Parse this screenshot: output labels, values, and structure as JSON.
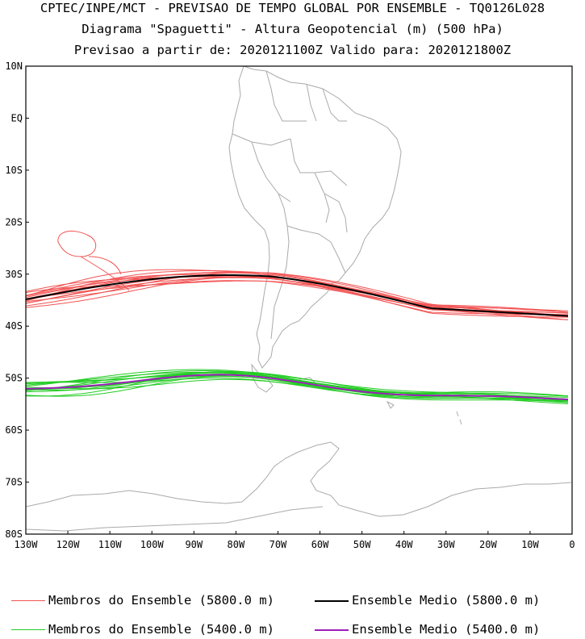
{
  "titles": {
    "line1": "CPTEC/INPE/MCT - PREVISAO DE TEMPO GLOBAL POR ENSEMBLE - TQ0126L028",
    "line2": "Diagrama \"Spaguetti\" - Altura Geopotencial (m) (500 hPa)",
    "line3": "Previsao a partir de: 2020121100Z  Valido para: 2020121800Z"
  },
  "axes": {
    "lat_labels": [
      "10N",
      "EQ",
      "10S",
      "20S",
      "30S",
      "40S",
      "50S",
      "60S",
      "70S",
      "80S"
    ],
    "lon_labels": [
      "130W",
      "120W",
      "110W",
      "100W",
      "90W",
      "80W",
      "70W",
      "60W",
      "50W",
      "40W",
      "30W",
      "20W",
      "10W",
      "0"
    ]
  },
  "legend": [
    {
      "label": "Membros do Ensemble (5800.0 m)",
      "color": "#f25454"
    },
    {
      "label": "Ensemble Medio (5800.0 m)",
      "color": "#000000"
    },
    {
      "label": "Membros do Ensemble (5400.0 m)",
      "color": "#22cc22"
    },
    {
      "label": "Ensemble Medio (5400.0 m)",
      "color": "#9b1fb8"
    }
  ],
  "colors": {
    "coast": "#aaaaaa",
    "red": "#f25454",
    "green": "#22cc22",
    "mean5800": "#000000",
    "mean5400": "#9b1fb8"
  }
}
